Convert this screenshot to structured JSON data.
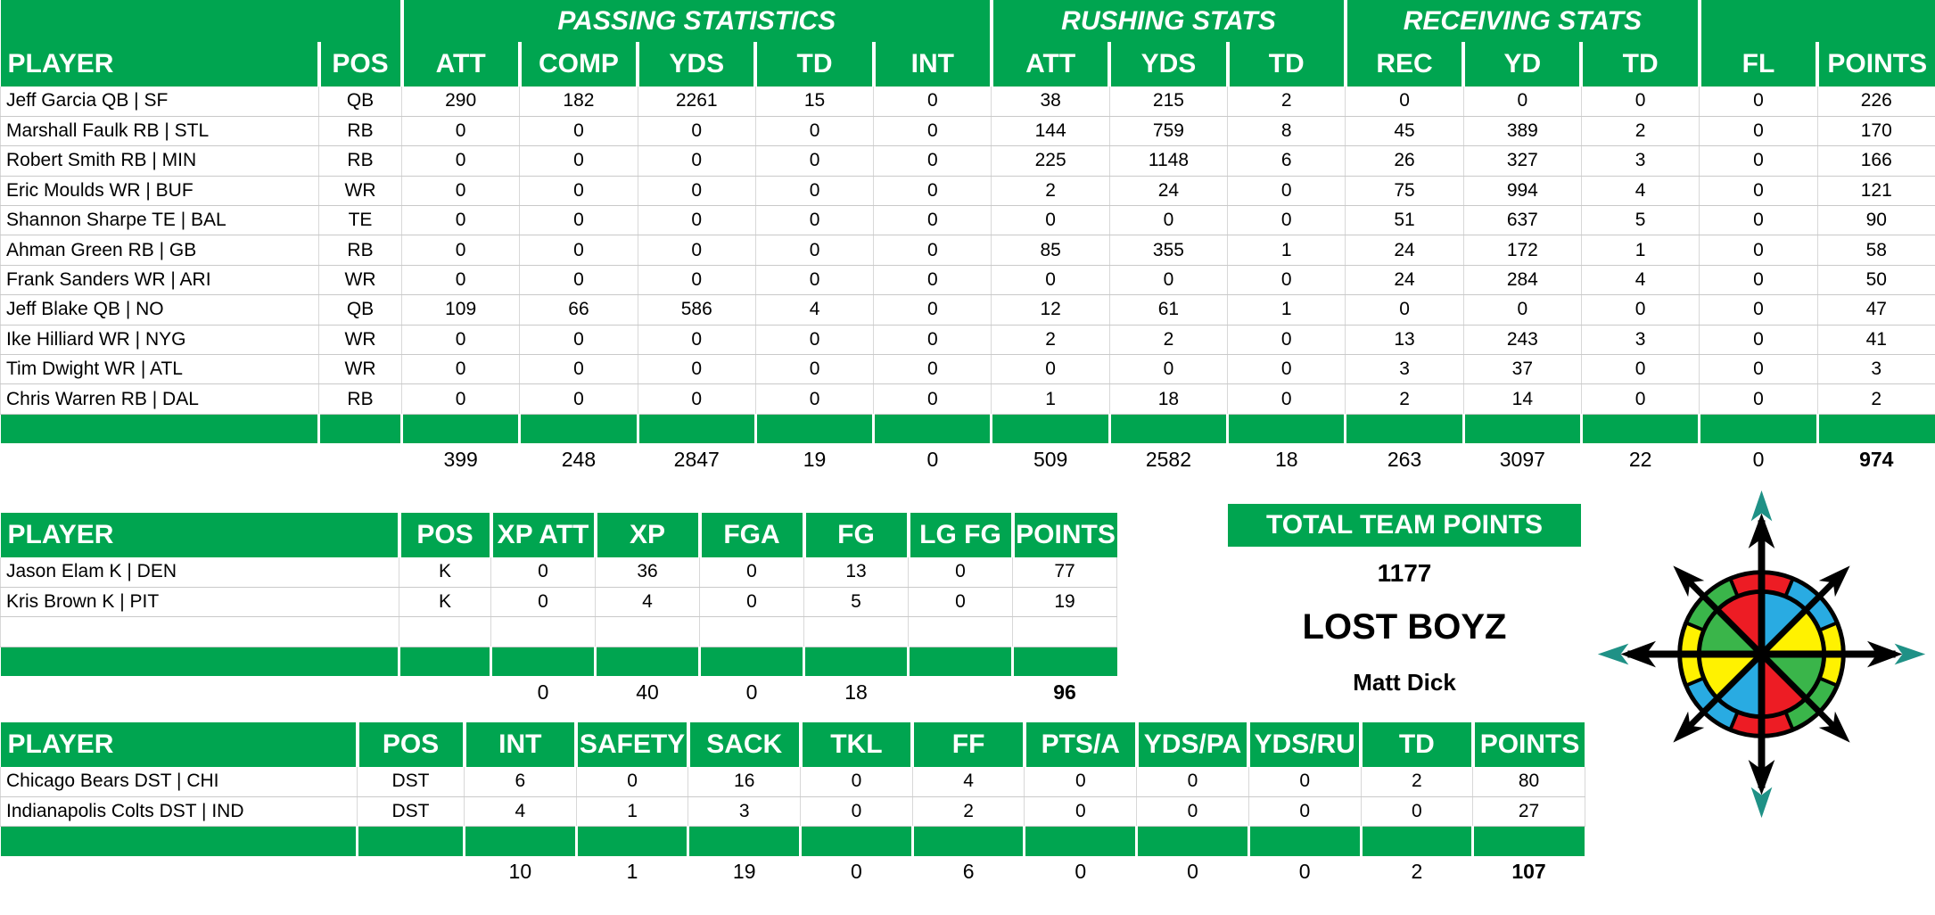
{
  "colors": {
    "header_green": "#00A550",
    "grid_line": "#C9C9C9"
  },
  "offense_table": {
    "group_row": [
      {
        "label": "",
        "span": 2
      },
      {
        "label": "PASSING STATISTICS",
        "span": 5
      },
      {
        "label": "RUSHING STATS",
        "span": 3
      },
      {
        "label": "RECEIVING STATS",
        "span": 3
      },
      {
        "label": "",
        "span": 2
      }
    ],
    "columns": [
      "PLAYER",
      "POS",
      "ATT",
      "COMP",
      "YDS",
      "TD",
      "INT",
      "ATT",
      "YDS",
      "TD",
      "REC",
      "YD",
      "TD",
      "FL",
      "POINTS"
    ],
    "rows": [
      {
        "player": "Jeff Garcia QB | SF",
        "pos": "QB",
        "stats": [
          "290",
          "182",
          "2261",
          "15",
          "0",
          "38",
          "215",
          "2",
          "0",
          "0",
          "0",
          "0",
          "226"
        ]
      },
      {
        "player": "Marshall Faulk RB | STL",
        "pos": "RB",
        "stats": [
          "0",
          "0",
          "0",
          "0",
          "0",
          "144",
          "759",
          "8",
          "45",
          "389",
          "2",
          "0",
          "170"
        ]
      },
      {
        "player": "Robert Smith RB | MIN",
        "pos": "RB",
        "stats": [
          "0",
          "0",
          "0",
          "0",
          "0",
          "225",
          "1148",
          "6",
          "26",
          "327",
          "3",
          "0",
          "166"
        ]
      },
      {
        "player": "Eric Moulds WR | BUF",
        "pos": "WR",
        "stats": [
          "0",
          "0",
          "0",
          "0",
          "0",
          "2",
          "24",
          "0",
          "75",
          "994",
          "4",
          "0",
          "121"
        ]
      },
      {
        "player": "Shannon Sharpe TE | BAL",
        "pos": "TE",
        "stats": [
          "0",
          "0",
          "0",
          "0",
          "0",
          "0",
          "0",
          "0",
          "51",
          "637",
          "5",
          "0",
          "90"
        ]
      },
      {
        "player": "Ahman Green RB | GB",
        "pos": "RB",
        "stats": [
          "0",
          "0",
          "0",
          "0",
          "0",
          "85",
          "355",
          "1",
          "24",
          "172",
          "1",
          "0",
          "58"
        ]
      },
      {
        "player": "Frank Sanders WR | ARI",
        "pos": "WR",
        "stats": [
          "0",
          "0",
          "0",
          "0",
          "0",
          "0",
          "0",
          "0",
          "24",
          "284",
          "4",
          "0",
          "50"
        ]
      },
      {
        "player": "Jeff Blake QB | NO",
        "pos": "QB",
        "stats": [
          "109",
          "66",
          "586",
          "4",
          "0",
          "12",
          "61",
          "1",
          "0",
          "0",
          "0",
          "0",
          "47"
        ]
      },
      {
        "player": "Ike Hilliard WR | NYG",
        "pos": "WR",
        "stats": [
          "0",
          "0",
          "0",
          "0",
          "0",
          "2",
          "2",
          "0",
          "13",
          "243",
          "3",
          "0",
          "41"
        ]
      },
      {
        "player": "Tim Dwight WR | ATL",
        "pos": "WR",
        "stats": [
          "0",
          "0",
          "0",
          "0",
          "0",
          "0",
          "0",
          "0",
          "3",
          "37",
          "0",
          "0",
          "3"
        ]
      },
      {
        "player": "Chris Warren RB | DAL",
        "pos": "RB",
        "stats": [
          "0",
          "0",
          "0",
          "0",
          "0",
          "1",
          "18",
          "0",
          "2",
          "14",
          "0",
          "0",
          "2"
        ]
      }
    ],
    "blank_row": false,
    "totals": [
      "399",
      "248",
      "2847",
      "19",
      "0",
      "509",
      "2582",
      "18",
      "263",
      "3097",
      "22",
      "0",
      "974"
    ]
  },
  "kicker_table": {
    "columns": [
      "PLAYER",
      "POS",
      "XP ATT",
      "XP",
      "FGA",
      "FG",
      "LG FG",
      "POINTS"
    ],
    "rows": [
      {
        "player": "Jason Elam K | DEN",
        "pos": "K",
        "stats": [
          "0",
          "36",
          "0",
          "13",
          "0",
          "77"
        ]
      },
      {
        "player": "Kris Brown K | PIT",
        "pos": "K",
        "stats": [
          "0",
          "4",
          "0",
          "5",
          "0",
          "19"
        ]
      }
    ],
    "blank_row": true,
    "totals": [
      "0",
      "40",
      "0",
      "18",
      "",
      "96"
    ]
  },
  "dst_table": {
    "columns": [
      "PLAYER",
      "POS",
      "INT",
      "SAFETY",
      "SACK",
      "TKL",
      "FF",
      "PTS/A",
      "YDS/PA",
      "YDS/RU",
      "TD",
      "POINTS"
    ],
    "rows": [
      {
        "player": "Chicago Bears DST | CHI",
        "pos": "DST",
        "stats": [
          "6",
          "0",
          "16",
          "0",
          "4",
          "0",
          "0",
          "0",
          "2",
          "80"
        ]
      },
      {
        "player": "Indianapolis Colts DST | IND",
        "pos": "DST",
        "stats": [
          "4",
          "1",
          "3",
          "0",
          "2",
          "0",
          "0",
          "0",
          "0",
          "27"
        ]
      }
    ],
    "blank_row": false,
    "totals": [
      "10",
      "1",
      "19",
      "0",
      "6",
      "0",
      "0",
      "0",
      "2",
      "107"
    ]
  },
  "team_summary": {
    "header": "TOTAL TEAM POINTS",
    "total_points": "1177",
    "team_name": "LOST BOYZ",
    "owner": "Matt Dick"
  },
  "compass": {
    "red": "#ED1C24",
    "blue": "#29ABE2",
    "yellow": "#FFF200",
    "green": "#3AB54A",
    "teal": "#1F9186",
    "black": "#000000"
  }
}
